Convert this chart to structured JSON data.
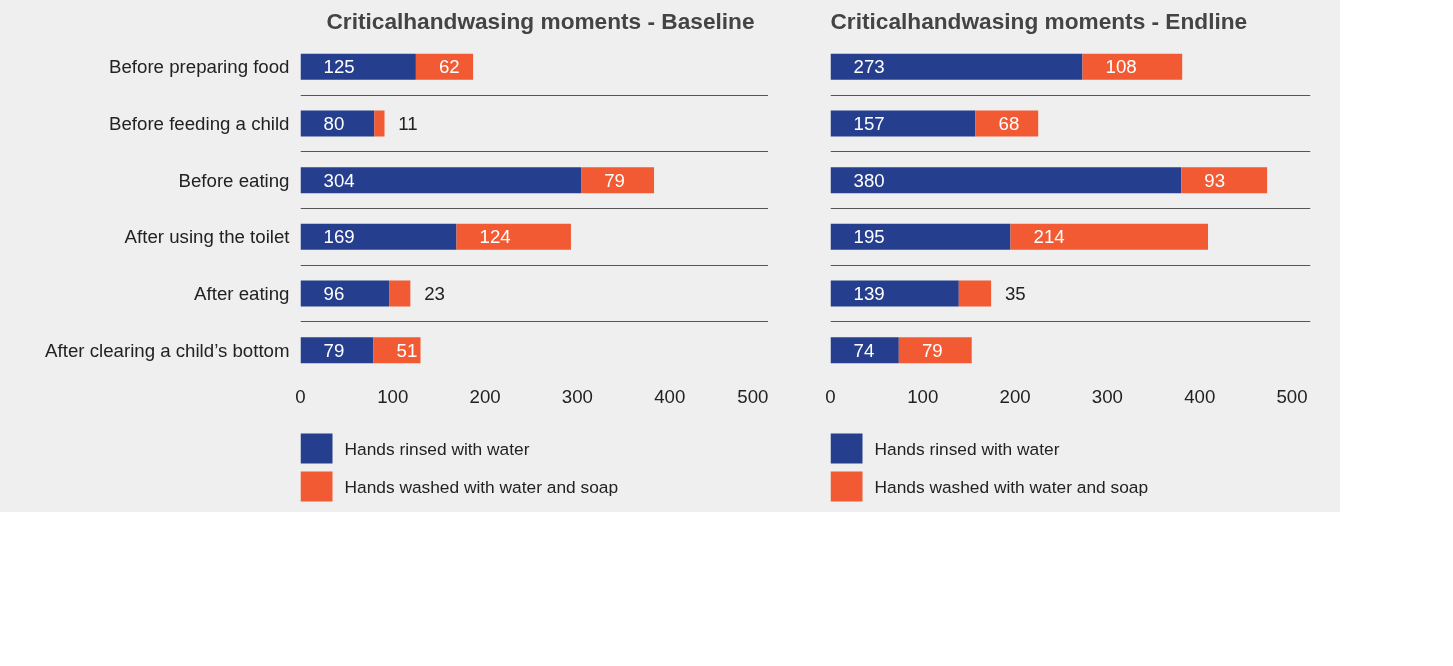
{
  "chart_data": [
    {
      "type": "bar",
      "orientation": "horizontal",
      "stacked": true,
      "title": "Criticalhandwasing moments - Baseline",
      "categories": [
        "Before preparing food",
        "Before feeding a child",
        "Before eating",
        "After using the toilet",
        "After eating",
        "After clearing a child’s bottom"
      ],
      "series": [
        {
          "name": "Hands rinsed with water",
          "color": "#253f8e",
          "values": [
            125,
            80,
            304,
            169,
            96,
            79
          ]
        },
        {
          "name": "Hands washed with water and soap",
          "color": "#f15a32",
          "values": [
            62,
            11,
            79,
            124,
            23,
            51
          ]
        }
      ],
      "xlim": [
        0,
        520
      ],
      "xticks": [
        0,
        100,
        200,
        300,
        400,
        500
      ],
      "data_labels": true,
      "grid": "y",
      "legend": "bottom"
    },
    {
      "type": "bar",
      "orientation": "horizontal",
      "stacked": true,
      "title": "Criticalhandwasing moments - Endline",
      "categories": [
        null,
        null,
        null,
        null,
        null,
        null
      ],
      "series": [
        {
          "name": "Hands rinsed with water",
          "color": "#253f8e",
          "values": [
            273,
            157,
            380,
            195,
            139,
            74
          ]
        },
        {
          "name": "Hands washed with water and soap",
          "color": "#f15a32",
          "values": [
            108,
            68,
            93,
            214,
            35,
            79
          ]
        }
      ],
      "xlim": [
        0,
        520
      ],
      "xticks": [
        0,
        100,
        200,
        300,
        400,
        500
      ],
      "data_labels": true,
      "grid": "y",
      "legend": "bottom",
      "tick_labels": "x"
    }
  ]
}
